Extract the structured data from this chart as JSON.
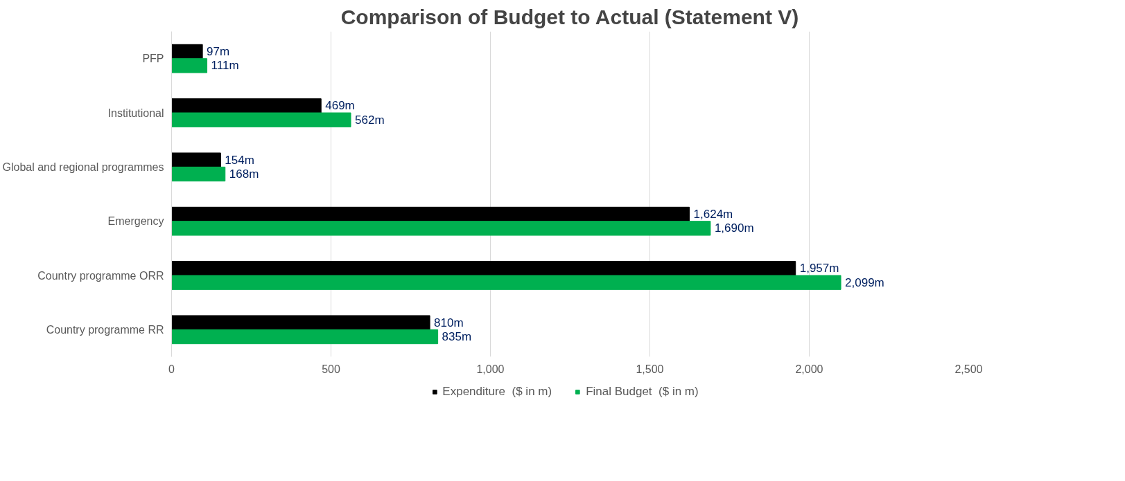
{
  "chart_data": {
    "type": "bar",
    "orientation": "horizontal",
    "title": "Comparison of Budget to Actual (Statement V)",
    "categories": [
      "PFP",
      "Institutional",
      "Global and regional programmes",
      "Emergency",
      "Country programme ORR",
      "Country programme RR"
    ],
    "series": [
      {
        "name": "Expenditure  ($ in m)",
        "color": "#000000",
        "values": [
          97,
          469,
          154,
          1624,
          1957,
          810
        ],
        "value_labels": [
          "97m",
          "469m",
          "154m",
          "1,624m",
          "1,957m",
          "810m"
        ]
      },
      {
        "name": "Final Budget  ($ in m)",
        "color": "#00b050",
        "values": [
          111,
          562,
          168,
          1690,
          2099,
          835
        ],
        "value_labels": [
          "111m",
          "562m",
          "168m",
          "1,690m",
          "2,099m",
          "835m"
        ]
      }
    ],
    "xlim": [
      0,
      2500
    ],
    "xticks": [
      0,
      500,
      {
        "value": 1000,
        "label": "1,000"
      },
      {
        "value": 1500,
        "label": "1,500"
      },
      {
        "value": 2000,
        "label": "2,000"
      },
      {
        "value": 2500,
        "label": "2,500"
      }
    ],
    "grid": "x",
    "legend": "bottom"
  }
}
